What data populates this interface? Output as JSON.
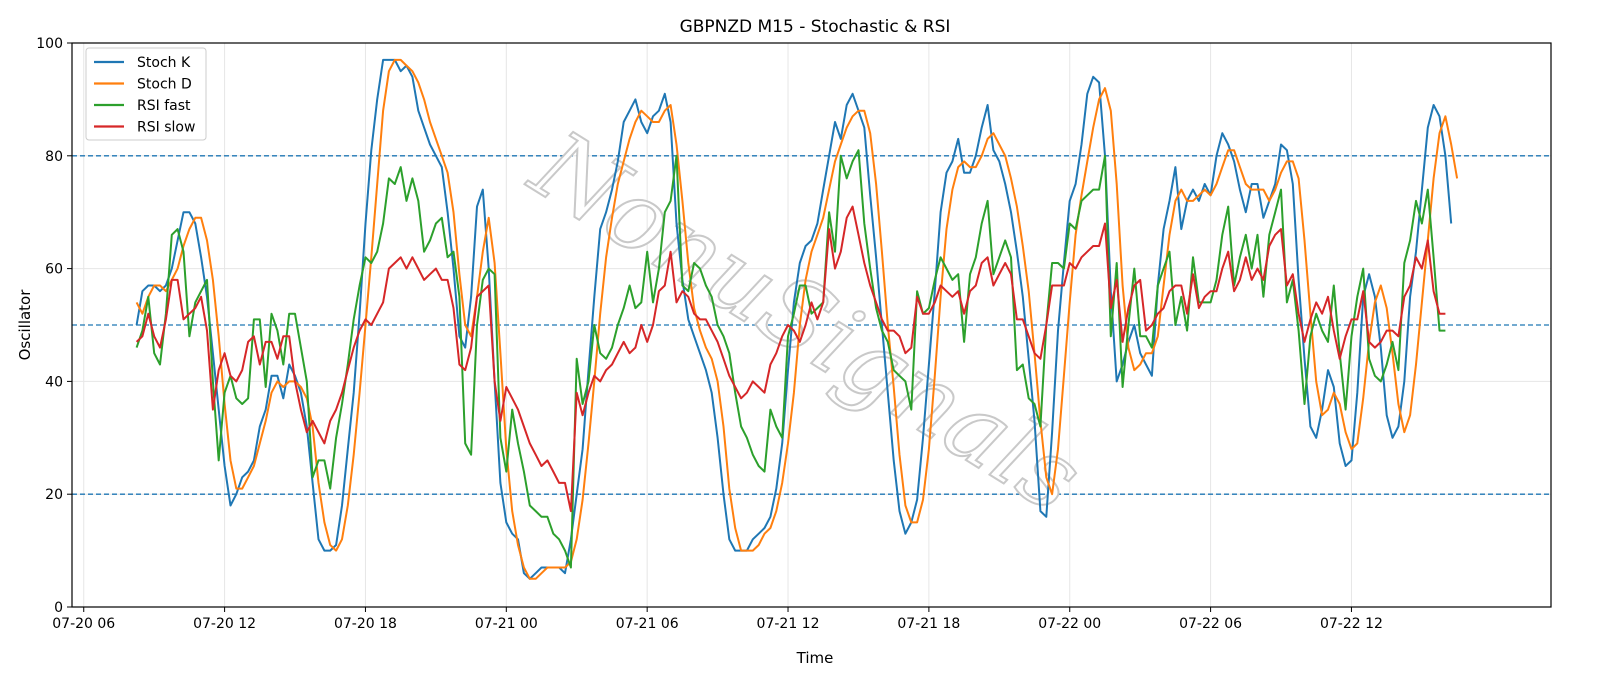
{
  "chart_data": {
    "type": "line",
    "title": "GBPNZD M15 - Stochastic & RSI",
    "xlabel": "Time",
    "ylabel": "Oscillator",
    "ylim": [
      0,
      100
    ],
    "xlim": [
      "2020-07-20 05:30",
      "2020-07-22 20:30"
    ],
    "yticks": [
      0,
      20,
      40,
      60,
      80,
      100
    ],
    "xticks": [
      "07-20 06",
      "07-20 12",
      "07-20 18",
      "07-21 00",
      "07-21 06",
      "07-21 12",
      "07-21 18",
      "07-22 00",
      "07-22 06",
      "07-22 12"
    ],
    "grid": true,
    "legend": "top-left",
    "hlines": [
      20,
      50,
      80
    ],
    "watermark": "NonuSignals",
    "x_start": "2020-07-20 08:15",
    "x_interval_minutes": 15,
    "series": [
      {
        "name": "Stoch K",
        "color": "#1f77b4",
        "values": [
          50,
          56,
          57,
          57,
          56,
          57,
          60,
          65,
          70,
          70,
          68,
          62,
          55,
          45,
          35,
          25,
          18,
          20,
          23,
          24,
          26,
          32,
          35,
          41,
          41,
          37,
          43,
          41,
          38,
          32,
          22,
          12,
          10,
          10,
          11,
          18,
          28,
          38,
          52,
          68,
          81,
          90,
          97,
          97,
          97,
          95,
          96,
          94,
          88,
          85,
          82,
          80,
          78,
          70,
          60,
          48,
          46,
          55,
          71,
          74,
          60,
          40,
          22,
          15,
          13,
          12,
          6,
          5,
          6,
          7,
          7,
          7,
          7,
          6,
          12,
          20,
          28,
          42,
          55,
          67,
          70,
          74,
          79,
          86,
          88,
          90,
          86,
          84,
          87,
          88,
          91,
          86,
          68,
          58,
          51,
          48,
          45,
          42,
          38,
          30,
          20,
          12,
          10,
          10,
          10,
          12,
          13,
          14,
          16,
          21,
          29,
          42,
          54,
          61,
          64,
          65,
          68,
          74,
          80,
          86,
          83,
          89,
          91,
          88,
          85,
          73,
          62,
          50,
          38,
          26,
          17,
          13,
          15,
          19,
          30,
          43,
          56,
          70,
          77,
          79,
          83,
          77,
          77,
          80,
          85,
          89,
          81,
          79,
          75,
          70,
          63,
          55,
          44,
          33,
          17,
          16,
          31,
          49,
          61,
          72,
          75,
          82,
          91,
          94,
          93,
          80,
          56,
          40,
          43,
          47,
          50,
          45,
          43,
          41,
          57,
          67,
          72,
          78,
          67,
          72,
          74,
          72,
          75,
          73,
          80,
          84,
          82,
          79,
          74,
          70,
          75,
          75,
          69,
          72,
          75,
          82,
          81,
          75,
          58,
          44,
          32,
          30,
          35,
          42,
          39,
          29,
          25,
          26,
          38,
          55,
          59,
          55,
          46,
          34,
          30,
          32,
          40,
          55,
          63,
          74,
          85,
          89,
          87,
          80,
          68
        ]
      },
      {
        "name": "Stoch D",
        "color": "#ff7f0e",
        "values": [
          54,
          52,
          55,
          57,
          57,
          56,
          58,
          60,
          64,
          67,
          69,
          69,
          65,
          58,
          48,
          36,
          26,
          21,
          21,
          23,
          25,
          29,
          33,
          38,
          40,
          39,
          40,
          40,
          39,
          37,
          32,
          22,
          15,
          11,
          10,
          12,
          18,
          27,
          38,
          50,
          62,
          75,
          88,
          95,
          97,
          97,
          96,
          95,
          93,
          90,
          86,
          83,
          80,
          77,
          70,
          59,
          50,
          48,
          55,
          63,
          69,
          61,
          45,
          28,
          17,
          11,
          7,
          5,
          5,
          6,
          7,
          7,
          7,
          7,
          8,
          12,
          19,
          29,
          40,
          52,
          62,
          69,
          75,
          79,
          83,
          86,
          88,
          87,
          86,
          86,
          88,
          89,
          82,
          72,
          61,
          53,
          49,
          46,
          44,
          40,
          32,
          21,
          14,
          10,
          10,
          10,
          11,
          13,
          14,
          17,
          22,
          29,
          38,
          50,
          58,
          63,
          66,
          69,
          74,
          79,
          82,
          85,
          87,
          88,
          88,
          84,
          75,
          63,
          50,
          39,
          27,
          18,
          15,
          15,
          19,
          28,
          41,
          55,
          67,
          74,
          78,
          79,
          78,
          78,
          80,
          83,
          84,
          82,
          80,
          76,
          71,
          64,
          56,
          45,
          33,
          23,
          20,
          28,
          41,
          54,
          66,
          73,
          79,
          85,
          90,
          92,
          88,
          75,
          57,
          46,
          42,
          43,
          45,
          45,
          48,
          57,
          66,
          72,
          74,
          72,
          72,
          73,
          74,
          73,
          75,
          78,
          81,
          81,
          78,
          75,
          74,
          74,
          74,
          72,
          74,
          77,
          79,
          79,
          76,
          65,
          52,
          40,
          34,
          35,
          38,
          36,
          31,
          28,
          29,
          37,
          47,
          54,
          57,
          53,
          45,
          36,
          31,
          34,
          43,
          54,
          65,
          76,
          84,
          87,
          82,
          76
        ]
      },
      {
        "name": "RSI fast",
        "color": "#2ca02c",
        "values": [
          46,
          49,
          55,
          45,
          43,
          52,
          66,
          67,
          63,
          48,
          54,
          56,
          58,
          40,
          26,
          38,
          41,
          37,
          36,
          37,
          51,
          51,
          39,
          52,
          49,
          43,
          52,
          52,
          46,
          40,
          23,
          26,
          26,
          21,
          30,
          36,
          43,
          51,
          57,
          62,
          61,
          63,
          68,
          76,
          75,
          78,
          72,
          76,
          72,
          63,
          65,
          68,
          69,
          62,
          63,
          55,
          29,
          27,
          50,
          58,
          60,
          59,
          30,
          24,
          35,
          29,
          24,
          18,
          17,
          16,
          16,
          13,
          12,
          10,
          7,
          44,
          36,
          40,
          50,
          45,
          44,
          46,
          50,
          53,
          57,
          53,
          54,
          63,
          54,
          60,
          70,
          72,
          80,
          57,
          56,
          61,
          60,
          57,
          55,
          50,
          48,
          45,
          38,
          32,
          30,
          27,
          25,
          24,
          35,
          32,
          30,
          48,
          52,
          57,
          57,
          52,
          53,
          54,
          70,
          63,
          80,
          76,
          79,
          81,
          68,
          60,
          53,
          49,
          47,
          42,
          41,
          40,
          35,
          56,
          52,
          53,
          58,
          62,
          60,
          58,
          59,
          47,
          59,
          62,
          68,
          72,
          59,
          62,
          65,
          62,
          42,
          43,
          37,
          36,
          32,
          50,
          61,
          61,
          60,
          68,
          67,
          72,
          73,
          74,
          74,
          80,
          48,
          61,
          39,
          50,
          60,
          48,
          48,
          46,
          57,
          60,
          63,
          50,
          55,
          49,
          62,
          54,
          54,
          54,
          58,
          66,
          71,
          57,
          62,
          66,
          60,
          66,
          55,
          66,
          70,
          74,
          54,
          58,
          49,
          36,
          48,
          52,
          49,
          47,
          57,
          45,
          35,
          48,
          55,
          60,
          44,
          41,
          40,
          43,
          47,
          42,
          61,
          65,
          72,
          68,
          74,
          62,
          49,
          49
        ]
      },
      {
        "name": "RSI slow",
        "color": "#d62728",
        "values": [
          47,
          48,
          52,
          48,
          46,
          51,
          58,
          58,
          51,
          52,
          53,
          55,
          49,
          35,
          42,
          45,
          41,
          40,
          42,
          47,
          48,
          43,
          47,
          47,
          44,
          48,
          48,
          40,
          35,
          31,
          33,
          31,
          29,
          33,
          35,
          38,
          42,
          46,
          49,
          51,
          50,
          52,
          54,
          60,
          61,
          62,
          60,
          62,
          60,
          58,
          59,
          60,
          58,
          58,
          53,
          43,
          42,
          46,
          55,
          56,
          57,
          40,
          33,
          39,
          37,
          35,
          32,
          29,
          27,
          25,
          26,
          24,
          22,
          22,
          17,
          38,
          34,
          38,
          41,
          40,
          42,
          43,
          45,
          47,
          45,
          46,
          50,
          47,
          50,
          56,
          57,
          63,
          54,
          56,
          55,
          52,
          51,
          51,
          49,
          47,
          44,
          41,
          39,
          37,
          38,
          40,
          39,
          38,
          43,
          45,
          48,
          50,
          49,
          47,
          50,
          54,
          51,
          54,
          67,
          60,
          63,
          69,
          71,
          66,
          61,
          57,
          54,
          51,
          49,
          49,
          48,
          45,
          46,
          55,
          52,
          52,
          54,
          57,
          56,
          55,
          56,
          52,
          56,
          57,
          61,
          62,
          57,
          59,
          61,
          59,
          51,
          51,
          48,
          45,
          44,
          50,
          57,
          57,
          57,
          61,
          60,
          62,
          63,
          64,
          64,
          68,
          53,
          58,
          47,
          53,
          57,
          58,
          49,
          50,
          52,
          53,
          56,
          57,
          57,
          52,
          59,
          53,
          55,
          56,
          56,
          60,
          63,
          56,
          58,
          62,
          58,
          60,
          58,
          64,
          66,
          67,
          57,
          59,
          52,
          47,
          51,
          54,
          52,
          55,
          49,
          44,
          48,
          51,
          51,
          56,
          47,
          46,
          47,
          49,
          49,
          48,
          55,
          57,
          62,
          60,
          65,
          56,
          52,
          52
        ]
      }
    ]
  }
}
